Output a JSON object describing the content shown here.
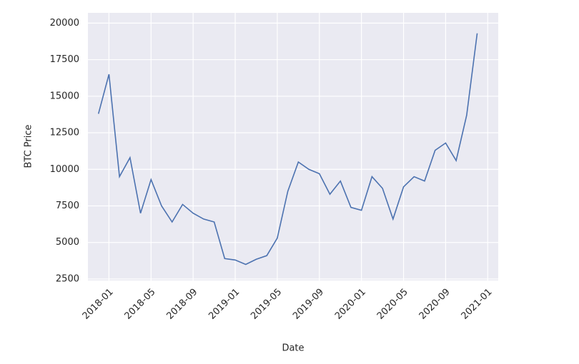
{
  "chart_data": {
    "type": "line",
    "xlabel": "Date",
    "ylabel": "BTC Price",
    "x": [
      "2017-12",
      "2018-01",
      "2018-02",
      "2018-03",
      "2018-04",
      "2018-05",
      "2018-06",
      "2018-07",
      "2018-08",
      "2018-09",
      "2018-10",
      "2018-11",
      "2018-12",
      "2019-01",
      "2019-02",
      "2019-03",
      "2019-04",
      "2019-05",
      "2019-06",
      "2019-07",
      "2019-08",
      "2019-09",
      "2019-10",
      "2019-11",
      "2019-12",
      "2020-01",
      "2020-02",
      "2020-03",
      "2020-04",
      "2020-05",
      "2020-06",
      "2020-07",
      "2020-08",
      "2020-09",
      "2020-10",
      "2020-11",
      "2020-12"
    ],
    "series": [
      {
        "name": "BTC Price",
        "color": "#4c72b0",
        "values": [
          13800,
          16500,
          9500,
          10800,
          7000,
          9300,
          7500,
          6400,
          7600,
          7000,
          6600,
          6400,
          3900,
          3800,
          3500,
          3850,
          4100,
          5300,
          8500,
          10500,
          10000,
          9700,
          8300,
          9200,
          7400,
          7200,
          9500,
          8700,
          6600,
          8800,
          9500,
          9200,
          11300,
          11800,
          10600,
          13700,
          19300
        ]
      }
    ],
    "xlim": [
      "2017-11",
      "2021-02"
    ],
    "xticks": [
      "2018-01",
      "2018-05",
      "2018-09",
      "2019-01",
      "2019-05",
      "2019-09",
      "2020-01",
      "2020-05",
      "2020-09",
      "2021-01"
    ],
    "ylim": [
      2400,
      20700
    ],
    "yticks": [
      2500,
      5000,
      7500,
      10000,
      12500,
      15000,
      17500,
      20000
    ],
    "grid": true
  }
}
